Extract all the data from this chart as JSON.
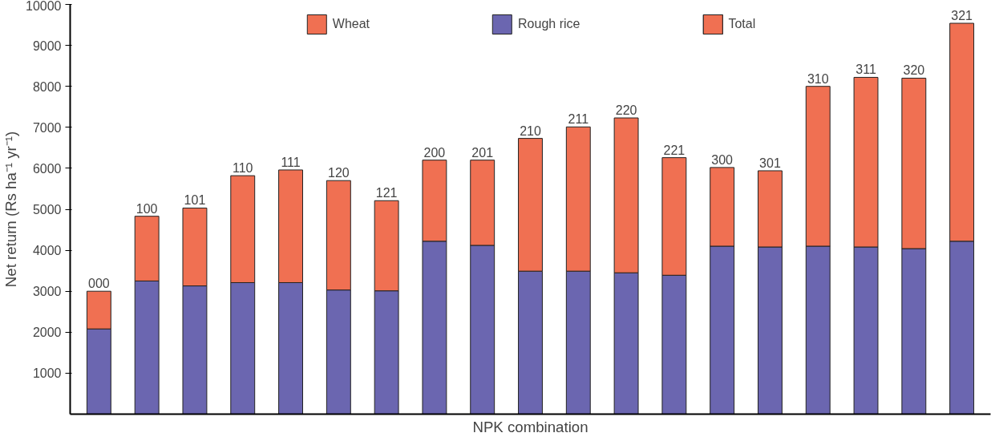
{
  "chart_data": {
    "type": "bar",
    "stacked": true,
    "xlabel": "NPK combination",
    "ylabel": "Net return (Rs ha⁻¹ yr⁻¹)",
    "categories": [
      "000",
      "100",
      "101",
      "110",
      "111",
      "120",
      "121",
      "200",
      "201",
      "210",
      "211",
      "220",
      "221",
      "300",
      "301",
      "310",
      "311",
      "320",
      "321"
    ],
    "series": [
      {
        "name": "Rough rice",
        "color": "#6b66b0",
        "values": [
          2080,
          3250,
          3130,
          3210,
          3210,
          3030,
          3010,
          4220,
          4120,
          3490,
          3490,
          3450,
          3390,
          4100,
          4080,
          4100,
          4080,
          4040,
          4220
        ]
      },
      {
        "name": "Wheat",
        "color": "#f07052",
        "values": [
          920,
          1580,
          1900,
          2610,
          2750,
          2670,
          2200,
          1980,
          2080,
          3240,
          3520,
          3780,
          2870,
          1920,
          1860,
          3900,
          4140,
          4160,
          5320
        ]
      }
    ],
    "annotations": [
      "Total"
    ],
    "ylim": [
      0,
      10000
    ],
    "yticks": [
      1000,
      2000,
      3000,
      4000,
      5000,
      6000,
      7000,
      8000,
      9000,
      10000
    ],
    "grid": false,
    "legend": "top",
    "tick_labels": "y"
  }
}
